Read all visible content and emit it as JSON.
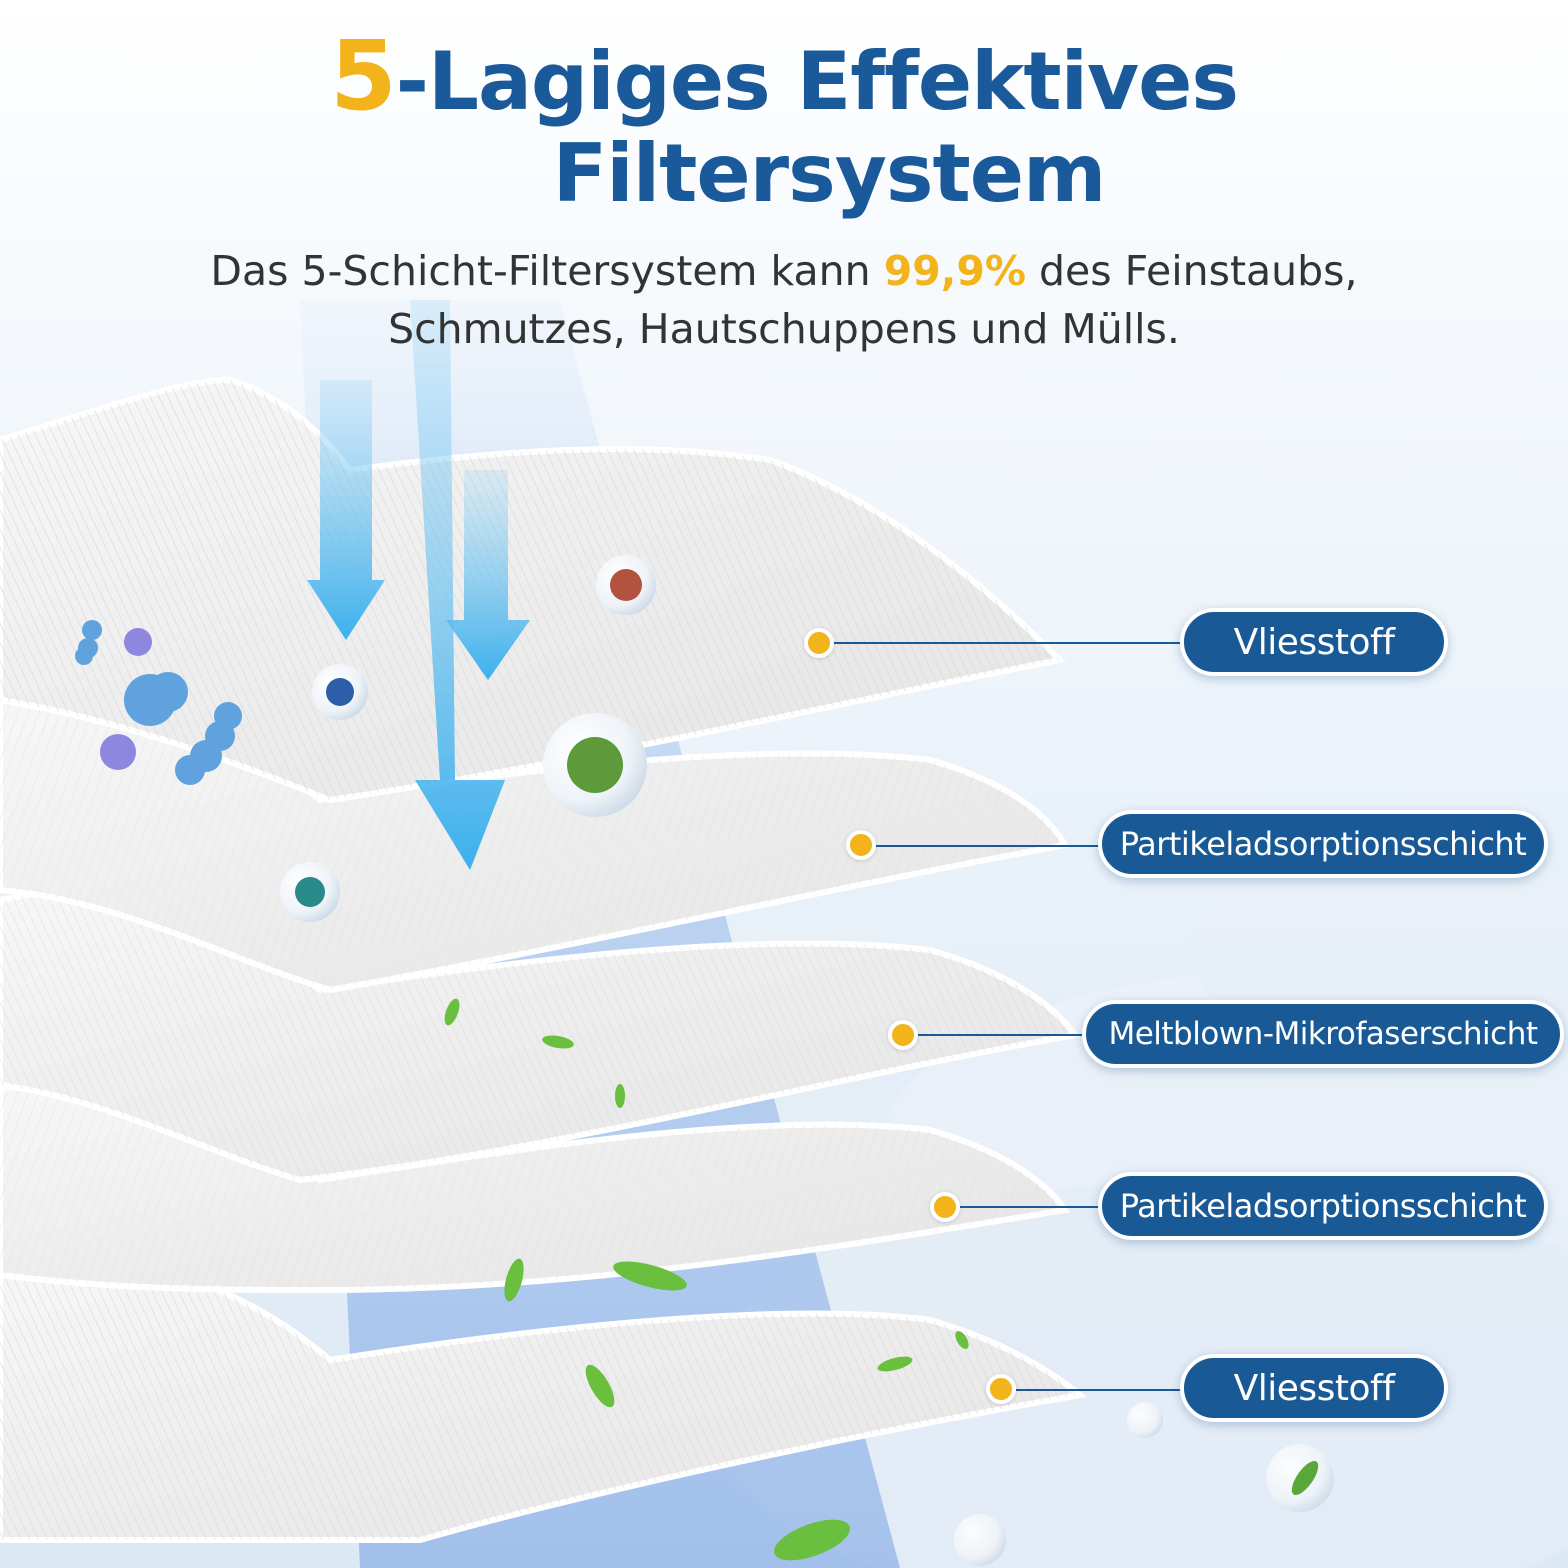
{
  "headline": {
    "number": "5",
    "line1_rest": "-Lagiges Effektives",
    "line2": "Filtersystem"
  },
  "subline": {
    "line1_before": "Das 5-Schicht-Filtersystem kann",
    "percent": "99,9%",
    "line1_after": "des Feinstaubs,",
    "line2": "Schmutzes, Hautschuppens und Mülls."
  },
  "layers": [
    {
      "label": "Vliesstoff"
    },
    {
      "label": "Partikeladsorptionsschicht"
    },
    {
      "label": "Meltblown-Mikrofaserschicht"
    },
    {
      "label": "Partikeladsorptionsschicht"
    },
    {
      "label": "Vliesstoff"
    }
  ],
  "colors": {
    "brand_blue": "#195a96",
    "accent_yellow": "#f2b31b",
    "text_dark": "#333333",
    "arrow_blue": "#4fb6ec"
  },
  "icons": [
    "airflow-arrow-icon",
    "germ-icon",
    "bacteria-icon",
    "leaf-icon",
    "bubble-icon"
  ]
}
